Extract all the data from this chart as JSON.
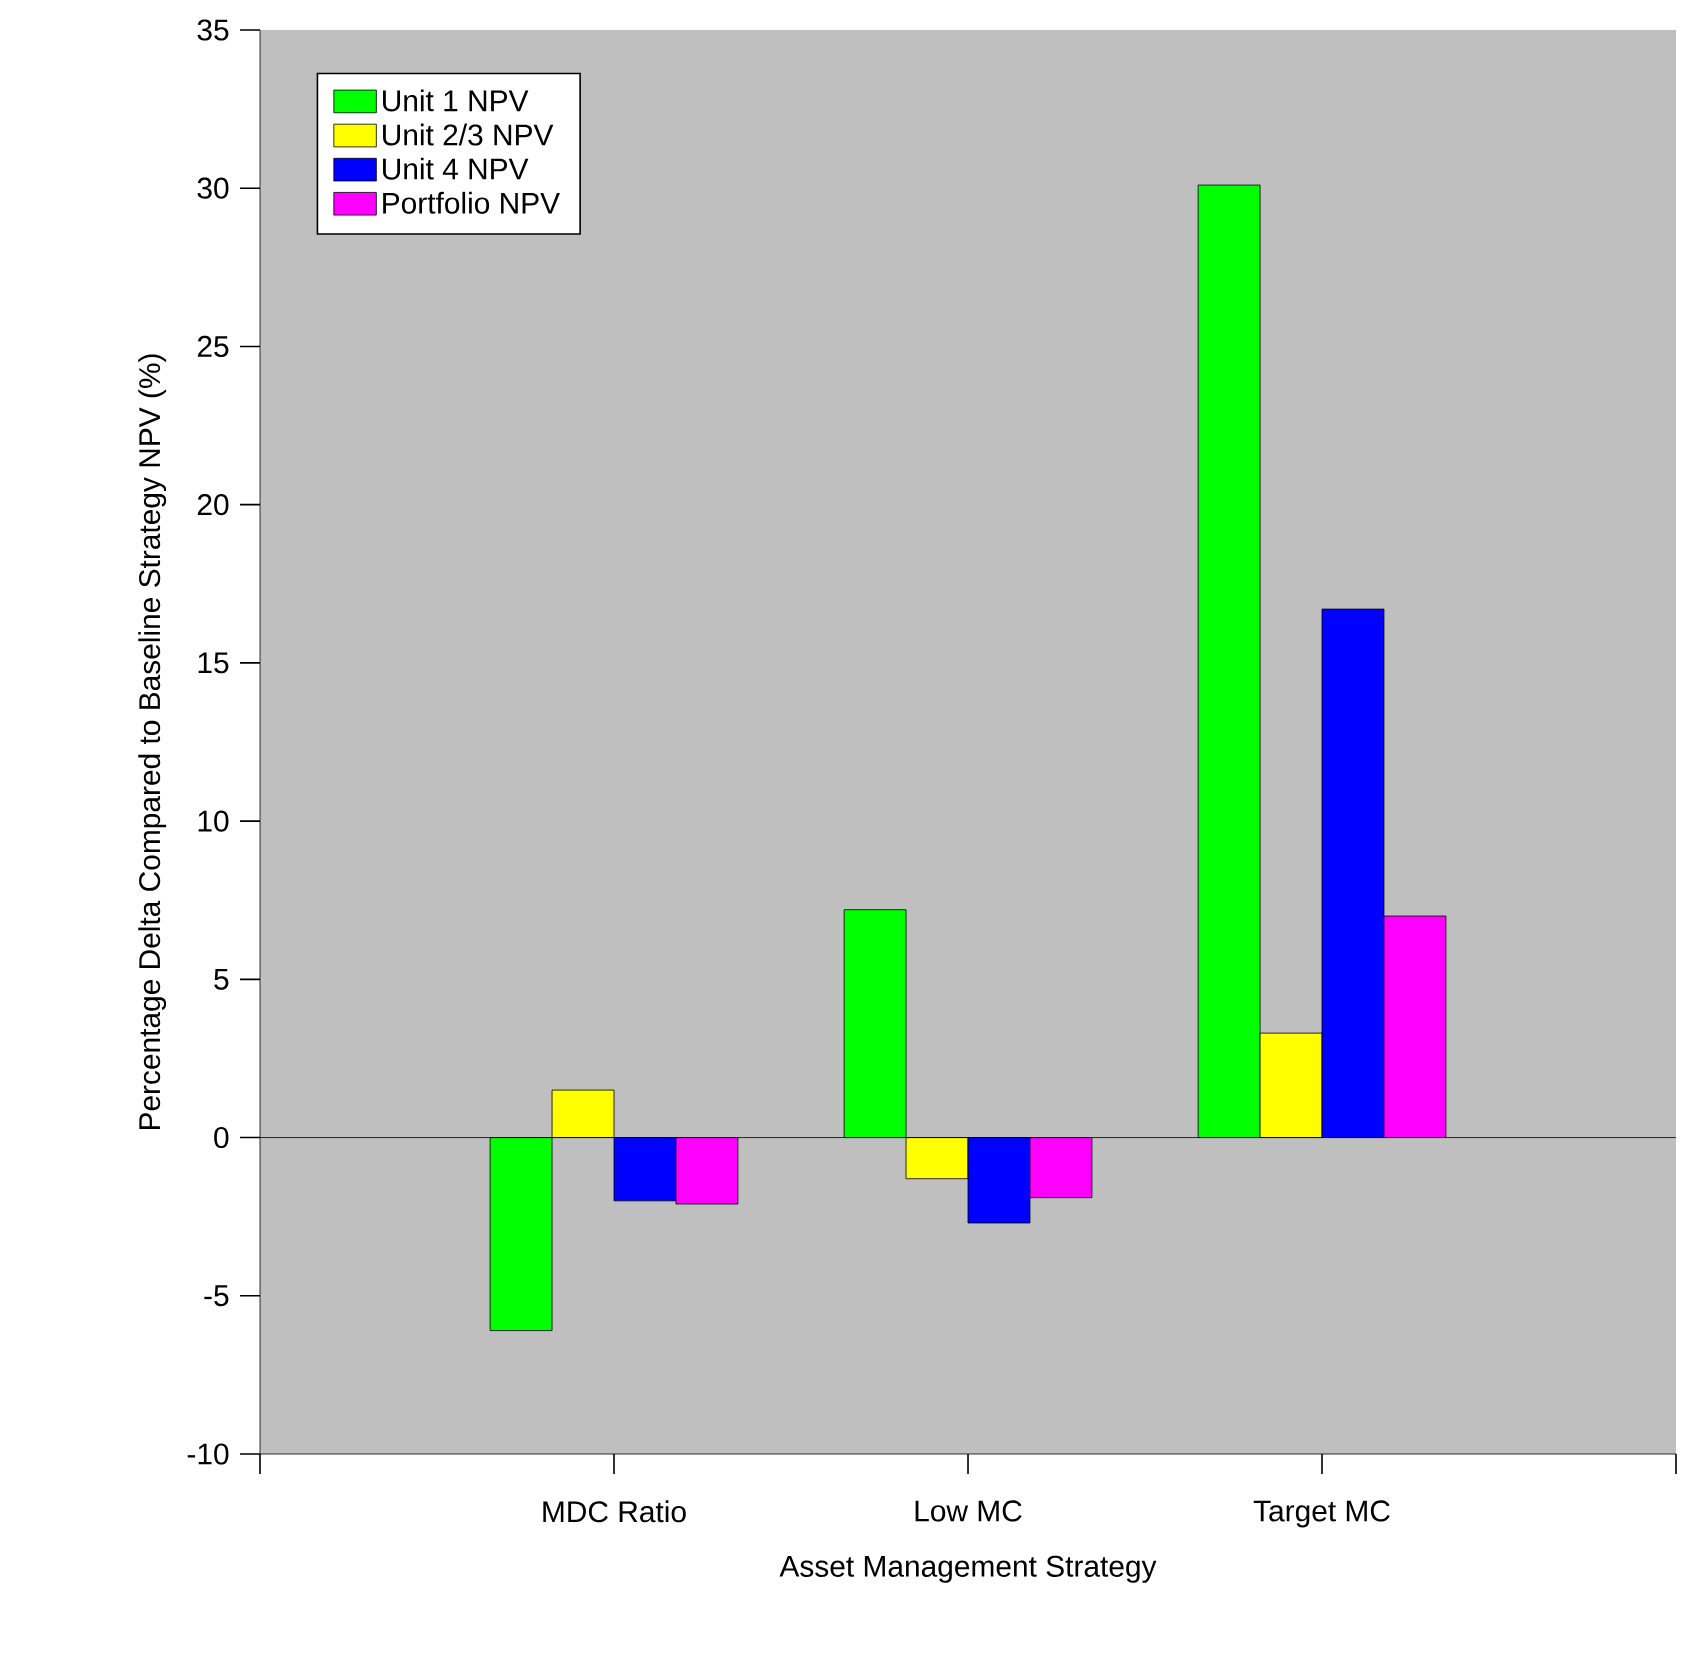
{
  "chart_data": {
    "type": "bar",
    "xlabel": "Asset Management Strategy",
    "ylabel": "Percentage Delta Compared to Baseline Strategy NPV (%)",
    "categories": [
      "MDC Ratio",
      "Low MC",
      "Target MC"
    ],
    "series": [
      {
        "name": "Unit 1 NPV",
        "color": "#00ff00",
        "values": [
          -6.1,
          7.2,
          30.1
        ]
      },
      {
        "name": "Unit 2/3 NPV",
        "color": "#ffff00",
        "values": [
          1.5,
          -1.3,
          3.3
        ]
      },
      {
        "name": "Unit 4 NPV",
        "color": "#0000ff",
        "values": [
          -2.0,
          -2.7,
          16.7
        ]
      },
      {
        "name": "Portfolio NPV",
        "color": "#ff00ff",
        "values": [
          -2.1,
          -1.9,
          7.0
        ]
      }
    ],
    "ylim": [
      -10,
      35
    ],
    "yticks": [
      -10,
      -5,
      0,
      5,
      10,
      15,
      20,
      25,
      30,
      35
    ],
    "grid": false,
    "legend": "top left",
    "ref_lines": [
      {
        "axis": "y",
        "value": 0,
        "color": "#000000"
      }
    ]
  }
}
